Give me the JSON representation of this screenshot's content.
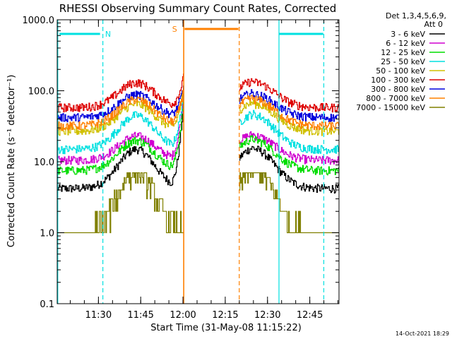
{
  "chart_data": {
    "type": "line",
    "title": "RHESSI Observing Summary Count Rates, Corrected",
    "xlabel": "Start Time (31-May-08 11:15:22)",
    "ylabel": "Corrected Count Rate (s⁻¹ detector⁻¹)",
    "yscale": "log",
    "ylim": [
      0.1,
      1000
    ],
    "xlim_minutes": [
      0,
      100
    ],
    "x_tick_labels": [
      "11:30",
      "11:45",
      "12:00",
      "12:15",
      "12:30",
      "12:45"
    ],
    "x_tick_minutes": [
      14.63,
      29.63,
      44.63,
      59.63,
      74.63,
      89.63
    ],
    "y_tick_labels": [
      "0.1",
      "1.0",
      "10.0",
      "100.0",
      "1000.0"
    ],
    "y_tick_values": [
      0.1,
      1,
      10,
      100,
      1000
    ],
    "legend_header": [
      "Det 1,3,4,5,6,9,",
      "Att 0"
    ],
    "legend_placement": "right",
    "timestamp": "14-Oct-2021 18:29",
    "data_gap_minutes": [
      44.9,
      64.6
    ],
    "series": [
      {
        "name": "3 - 6 keV",
        "color": "#000000",
        "base": 4.2,
        "peak": 15,
        "spike": 80
      },
      {
        "name": "6 - 12 keV",
        "color": "#d000d0",
        "base": 10.5,
        "peak": 23,
        "spike": 95
      },
      {
        "name": "12 - 25 keV",
        "color": "#00dd00",
        "base": 7.5,
        "peak": 20,
        "spike": 85
      },
      {
        "name": "25 - 50 keV",
        "color": "#00e0e0",
        "base": 15,
        "peak": 45,
        "spike": 105
      },
      {
        "name": "50 - 100 keV",
        "color": "#d0c000",
        "base": 27,
        "peak": 65,
        "spike": 115
      },
      {
        "name": "100 - 300 keV",
        "color": "#dd0000",
        "base": 58,
        "peak": 130,
        "spike": 165
      },
      {
        "name": "300 - 800 keV",
        "color": "#0000dd",
        "base": 42,
        "peak": 88,
        "spike": 120
      },
      {
        "name": "800 - 7000 keV",
        "color": "#ff8000",
        "base": 32,
        "peak": 75,
        "spike": 110
      },
      {
        "name": "7000 - 15000 keV",
        "color": "#808000",
        "base": 1.0,
        "peak": 8,
        "spike": 0
      }
    ],
    "flags": [
      {
        "label": "N",
        "color": "#00e0e0"
      },
      {
        "label": "S",
        "color": "#ff8000"
      }
    ]
  }
}
